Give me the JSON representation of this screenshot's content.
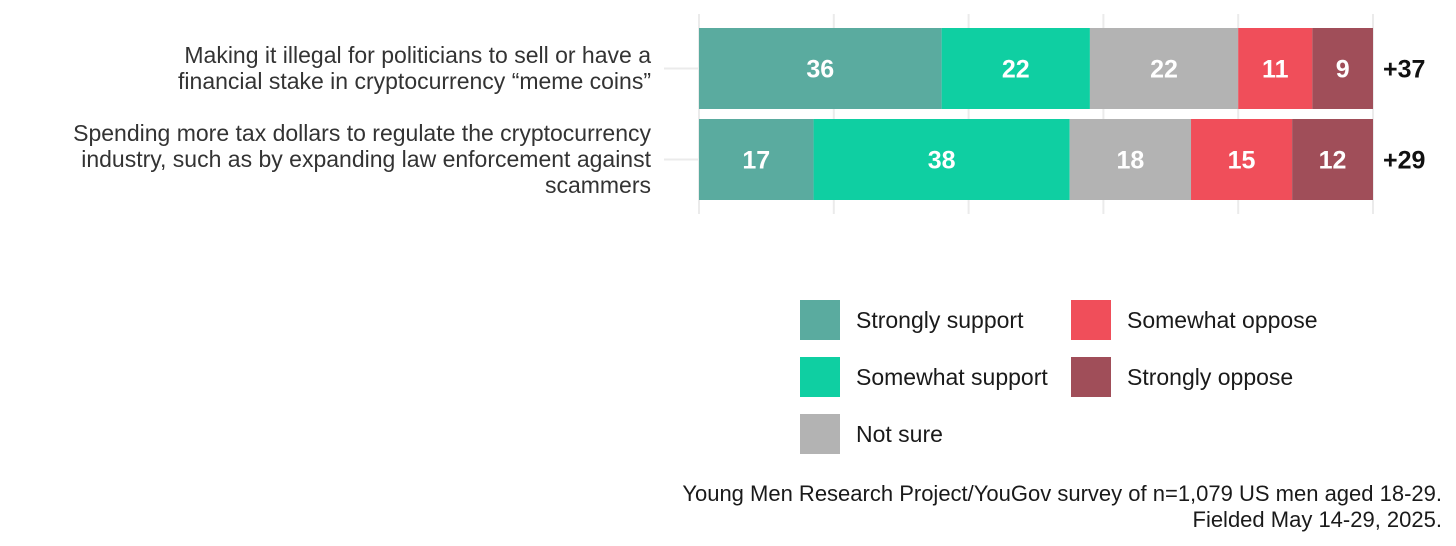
{
  "chart_data": {
    "type": "bar",
    "orientation": "horizontal",
    "stacked": true,
    "categories": [
      [
        "Making it illegal for politicians to sell or have a",
        "financial stake in cryptocurrency “meme coins”"
      ],
      [
        "Spending more tax dollars to regulate the cryptocurrency",
        "industry, such as by expanding law enforcement against",
        "scammers"
      ]
    ],
    "series": [
      {
        "name": "Strongly support",
        "color": "#5aab9f",
        "values": [
          36,
          17
        ]
      },
      {
        "name": "Somewhat support",
        "color": "#0fcfa2",
        "values": [
          22,
          38
        ]
      },
      {
        "name": "Not sure",
        "color": "#b3b3b3",
        "values": [
          22,
          18
        ]
      },
      {
        "name": "Somewhat oppose",
        "color": "#f04e5a",
        "values": [
          11,
          15
        ]
      },
      {
        "name": "Strongly oppose",
        "color": "#a04e59",
        "values": [
          9,
          12
        ]
      }
    ],
    "net_labels": [
      "+37",
      "+29"
    ],
    "xlim": [
      0,
      100
    ],
    "grid": true,
    "legend_position": "bottom-right"
  },
  "source_lines": [
    "Young Men Research Project/YouGov survey of n=1,079 US men aged 18-29.",
    "Fielded May 14-29, 2025."
  ]
}
